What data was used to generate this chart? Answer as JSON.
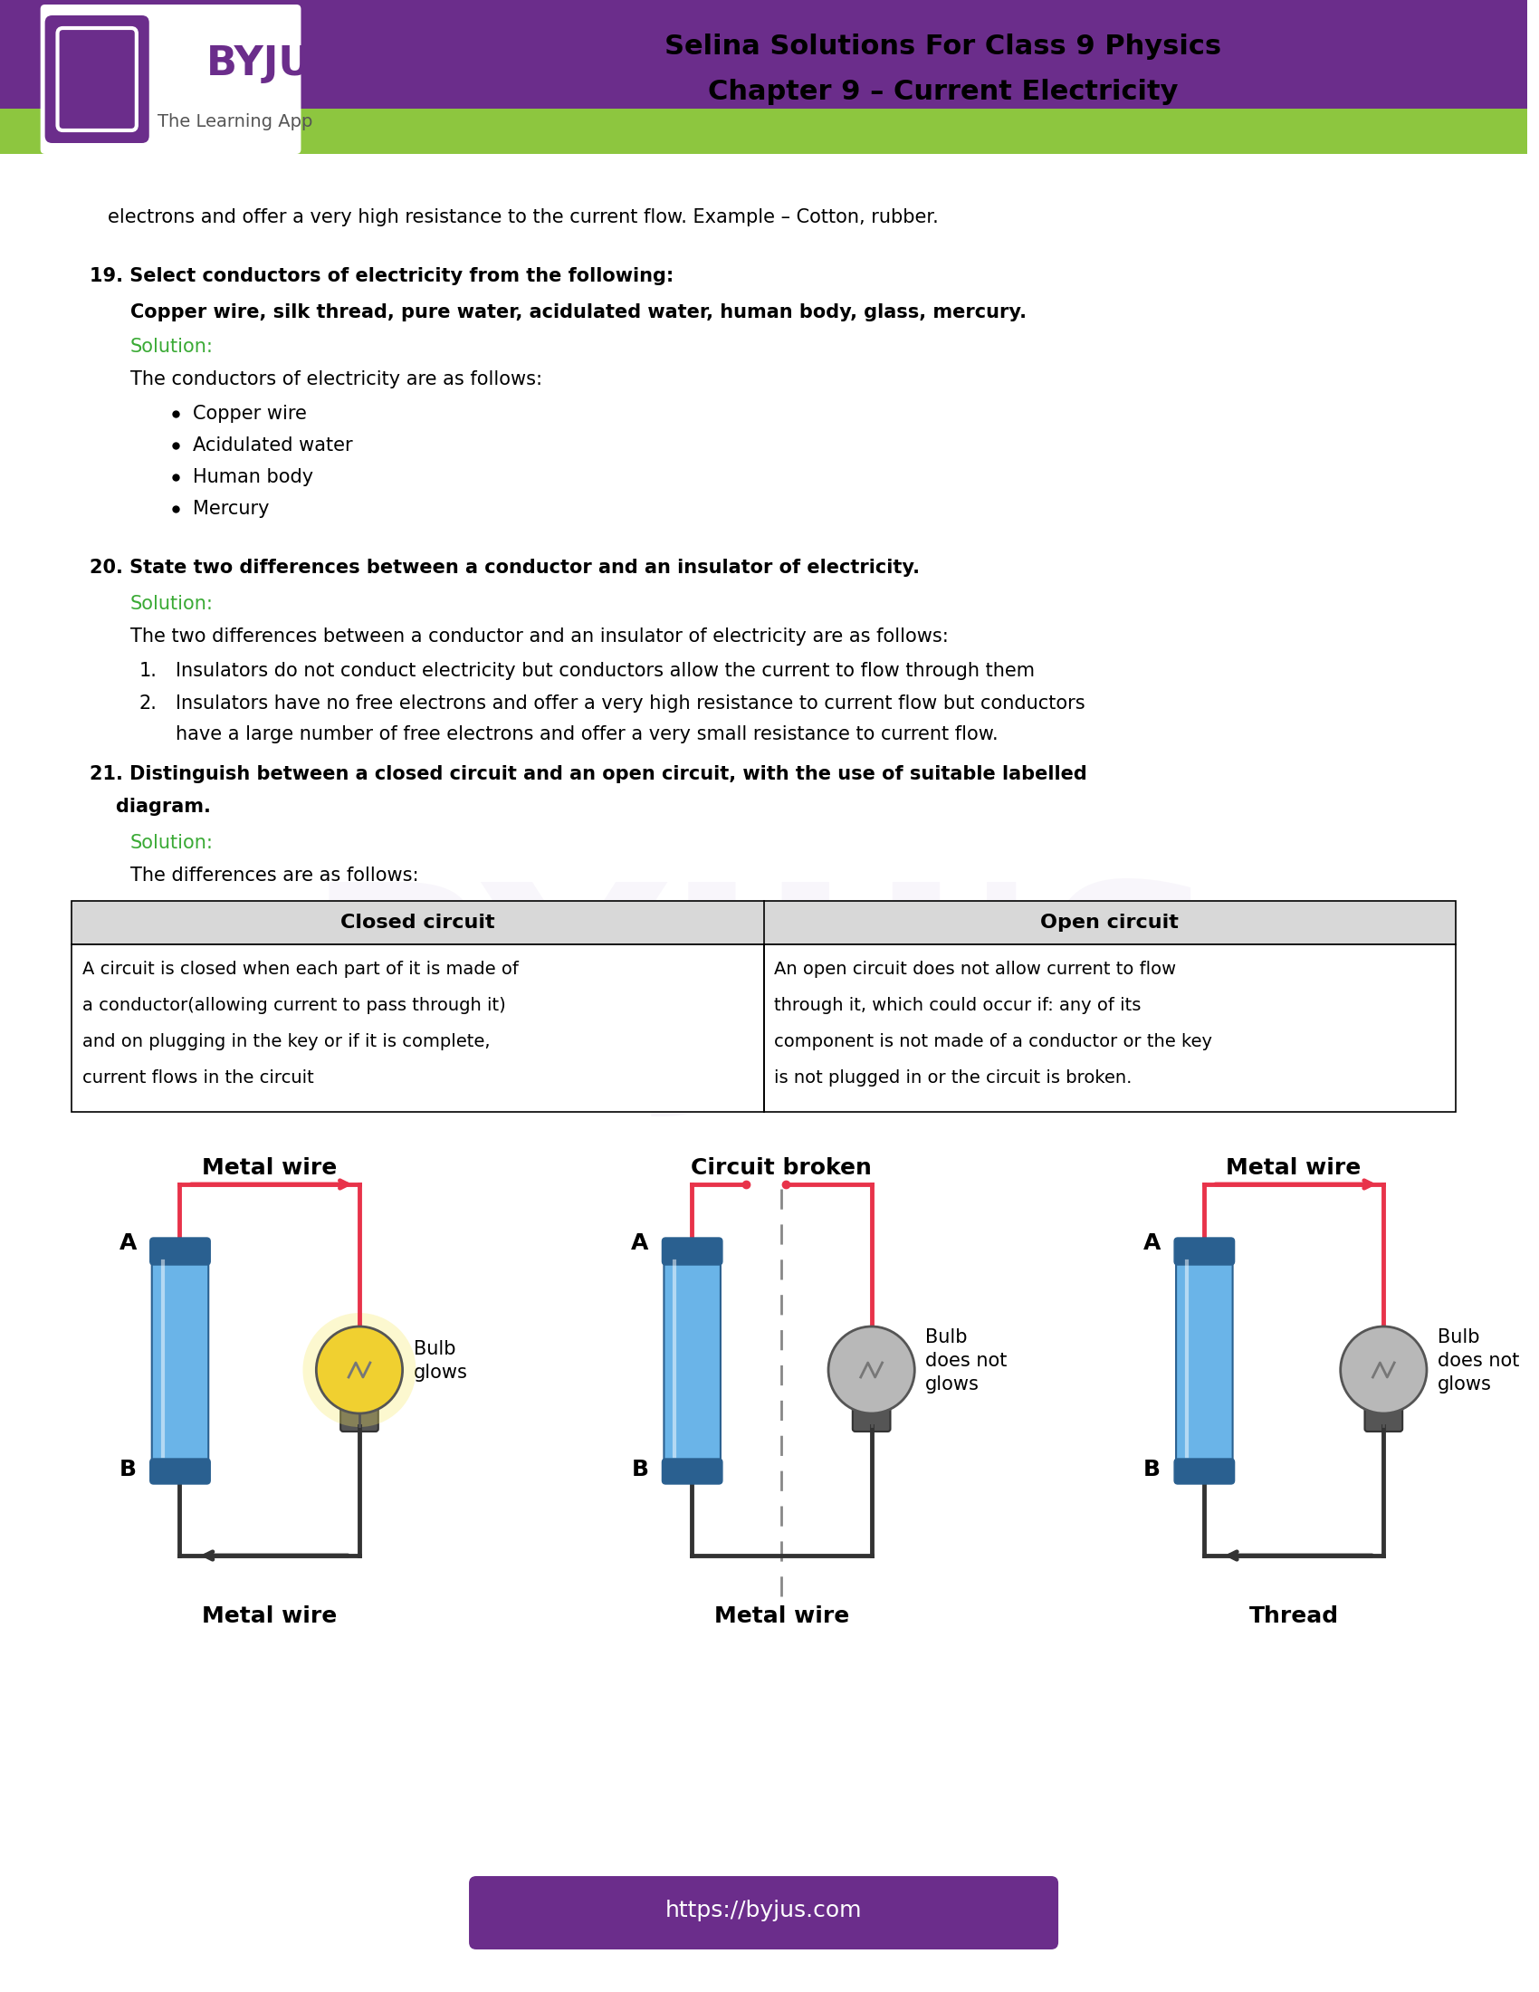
{
  "page_bg": "#ffffff",
  "header_purple": "#6b2d8b",
  "header_green": "#8dc63f",
  "title_line1": "Selina Solutions For Class 9 Physics",
  "title_line2": "Chapter 9 – Current Electricity",
  "solution_color": "#3aaa35",
  "footer_bg": "#6b2d8b",
  "footer_text": "https://byjus.com",
  "footer_text_color": "#ffffff",
  "intro_text": "electrons and offer a very high resistance to the current flow. Example – Cotton, rubber.",
  "q19_num_bold": "19. Select conductors of electricity from the following:",
  "q19_sub": "Copper wire, silk thread, pure water, acidulated water, human body, glass, mercury.",
  "q19_sol_label": "Solution:",
  "q19_sol_text": "The conductors of electricity are as follows:",
  "q19_bullets": [
    "Copper wire",
    "Acidulated water",
    "Human body",
    "Mercury"
  ],
  "q20_num_bold": "20. State two differences between a conductor and an insulator of electricity.",
  "q20_sol_label": "Solution:",
  "q20_sol_text": "The two differences between a conductor and an insulator of electricity are as follows:",
  "q20_point1": "Insulators do not conduct electricity but conductors allow the current to flow through them",
  "q20_point2a": "Insulators have no free electrons and offer a very high resistance to current flow but conductors",
  "q20_point2b": "have a large number of free electrons and offer a very small resistance to current flow.",
  "q21_line1": "21. Distinguish between a closed circuit and an open circuit, with the use of suitable labelled",
  "q21_line2": "    diagram.",
  "q21_sol_label": "Solution:",
  "q21_sol_text": "The differences are as follows:",
  "tbl_hdr_left": "Closed circuit",
  "tbl_hdr_right": "Open circuit",
  "tbl_left_lines": [
    "A circuit is closed when each part of it is made of",
    "a conductor(allowing current to pass through it)",
    "and on plugging in the key or if it is complete,",
    "current flows in the circuit"
  ],
  "tbl_right_lines": [
    "An open circuit does not allow current to flow",
    "through it, which could occur if: any of its",
    "component is not made of a conductor or the key",
    "is not plugged in or the circuit is broken."
  ],
  "d1_title": "Metal wire",
  "d1_A": "A",
  "d1_B": "B",
  "d1_bulb_text": "Bulb\nglows",
  "d1_bottom": "Metal wire",
  "d2_title": "Circuit broken",
  "d2_A": "A",
  "d2_B": "B",
  "d2_bulb_text": "Bulb\ndoes not\nglows",
  "d2_bottom": "Metal wire",
  "d3_title": "Metal wire",
  "d3_A": "A",
  "d3_B": "B",
  "d3_bulb_text": "Bulb\ndoes not\nglows",
  "d3_bottom": "Thread",
  "wire_red": "#e8334a",
  "wire_dark": "#333333",
  "bat_blue": "#6ab4e8",
  "bat_dark": "#2a6090",
  "bulb_lit_color": "#f0d030",
  "bulb_dim_color": "#b8b8b8"
}
